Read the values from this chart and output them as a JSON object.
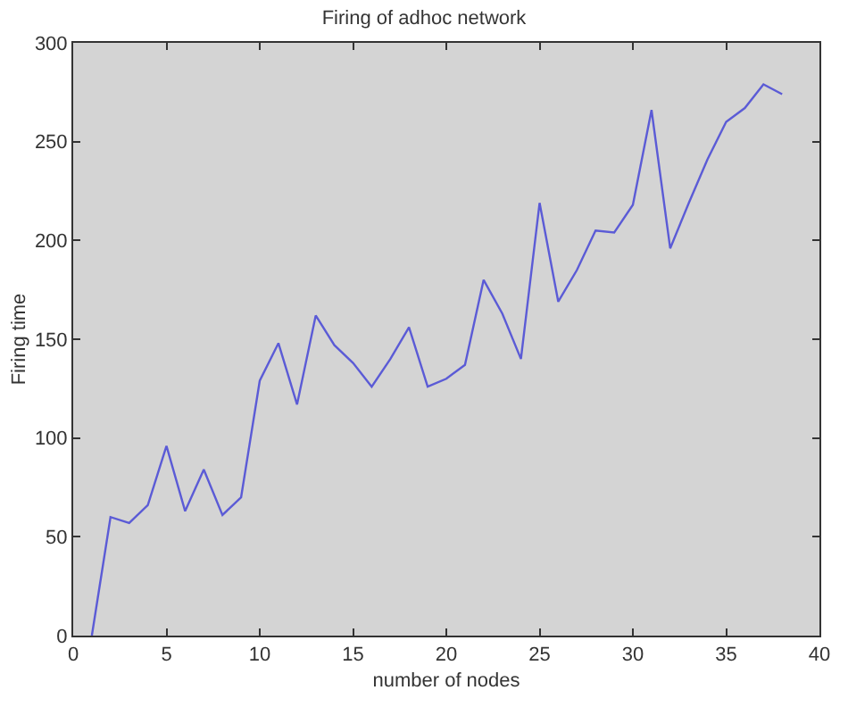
{
  "chart_data": {
    "type": "line",
    "title": "Firing of adhoc network",
    "xlabel": "number of nodes",
    "ylabel": "Firing time",
    "x": [
      1,
      2,
      3,
      4,
      5,
      6,
      7,
      8,
      9,
      10,
      11,
      12,
      13,
      14,
      15,
      16,
      17,
      18,
      19,
      20,
      21,
      22,
      23,
      24,
      25,
      26,
      27,
      28,
      29,
      30,
      31,
      32,
      33,
      34,
      35,
      36,
      37,
      38
    ],
    "series": [
      {
        "color": "#5b5bd6",
        "values": [
          0,
          60,
          57,
          66,
          96,
          63,
          84,
          61,
          70,
          129,
          148,
          117,
          162,
          147,
          138,
          126,
          140,
          156,
          126,
          130,
          137,
          180,
          163,
          140,
          219,
          169,
          185,
          205,
          204,
          218,
          266,
          196,
          219,
          241,
          260,
          267,
          279,
          274
        ]
      }
    ],
    "xlim": [
      0,
      40
    ],
    "xticks": [
      0,
      5,
      10,
      15,
      20,
      25,
      30,
      35,
      40
    ],
    "ylim": [
      0,
      300
    ],
    "yticks": [
      0,
      50,
      100,
      150,
      200,
      250,
      300
    ],
    "grid": false,
    "legend": false,
    "marker": "none",
    "line_style": "solid"
  }
}
